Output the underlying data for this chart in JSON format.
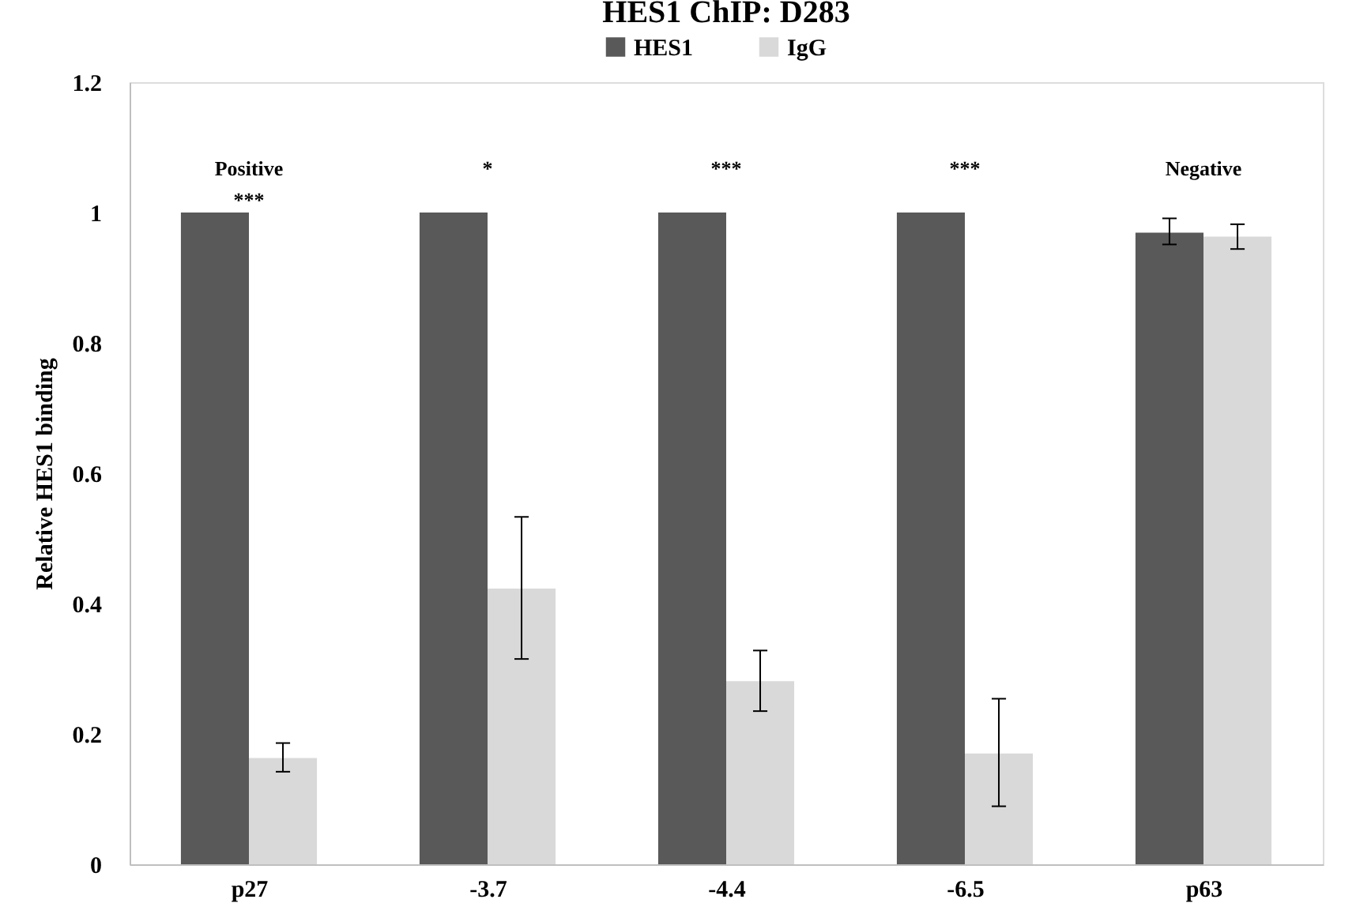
{
  "chart_data": {
    "type": "bar",
    "title": "HES1 ChIP: D283",
    "ylabel": "Relative HES1 binding",
    "categories": [
      "p27",
      "-3.7",
      "-4.4",
      "-6.5",
      "p63"
    ],
    "series": [
      {
        "name": "HES1",
        "color": "#595959",
        "values": [
          1,
          1,
          1,
          1,
          0.969
        ],
        "errors": [
          null,
          null,
          null,
          null,
          [
            0.951,
            0.991
          ]
        ]
      },
      {
        "name": "IgG",
        "color": "#d9d9d9",
        "values": [
          0.163,
          0.423,
          0.281,
          0.17,
          0.963
        ],
        "errors": [
          [
            0.142,
            0.186
          ],
          [
            0.315,
            0.533
          ],
          [
            0.235,
            0.328
          ],
          [
            0.089,
            0.254
          ],
          [
            0.944,
            0.982
          ]
        ]
      }
    ],
    "ylim": [
      0,
      1.2
    ],
    "yticks": [
      0,
      0.2,
      0.4,
      0.6,
      0.8,
      1,
      1.2
    ],
    "grid": false,
    "legend": "top",
    "annotations": [
      "Positive\n***",
      "*",
      "***",
      "***",
      "Negative"
    ]
  }
}
